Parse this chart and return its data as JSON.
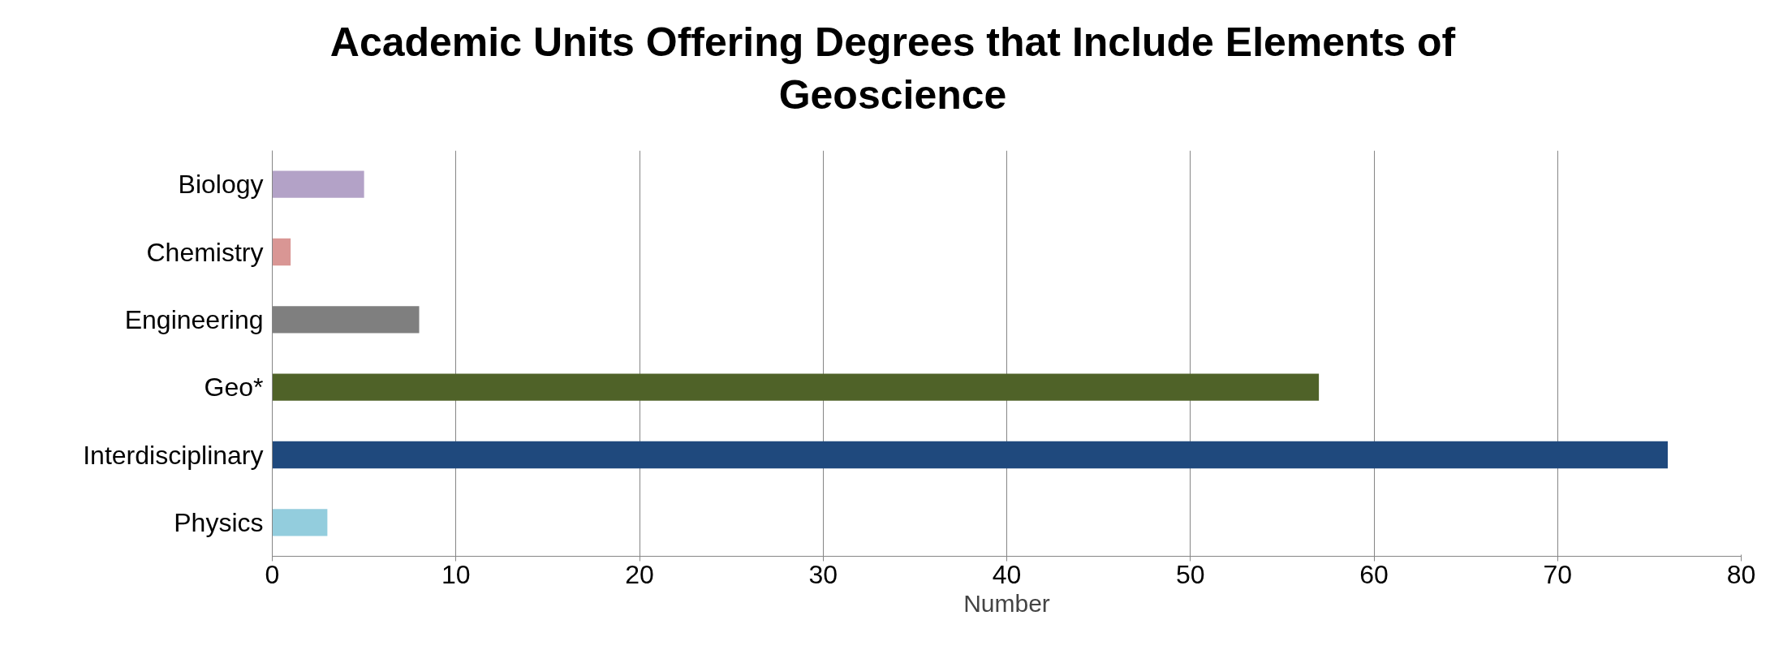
{
  "chart_data": {
    "type": "bar",
    "orientation": "horizontal",
    "title": "Academic Units Offering Degrees that Include Elements of Geoscience",
    "xlabel": "Number",
    "categories": [
      "Biology",
      "Chemistry",
      "Engineering",
      "Geo*",
      "Interdisciplinary",
      "Physics"
    ],
    "values": [
      5,
      1,
      8,
      57,
      76,
      3
    ],
    "colors": [
      "#b3a2c7",
      "#d99694",
      "#7f7f7f",
      "#4f6228",
      "#1f497d",
      "#93cddd"
    ],
    "xlim": [
      0,
      80
    ],
    "xticks": [
      0,
      10,
      20,
      30,
      40,
      50,
      60,
      70,
      80
    ],
    "grid": "x"
  }
}
